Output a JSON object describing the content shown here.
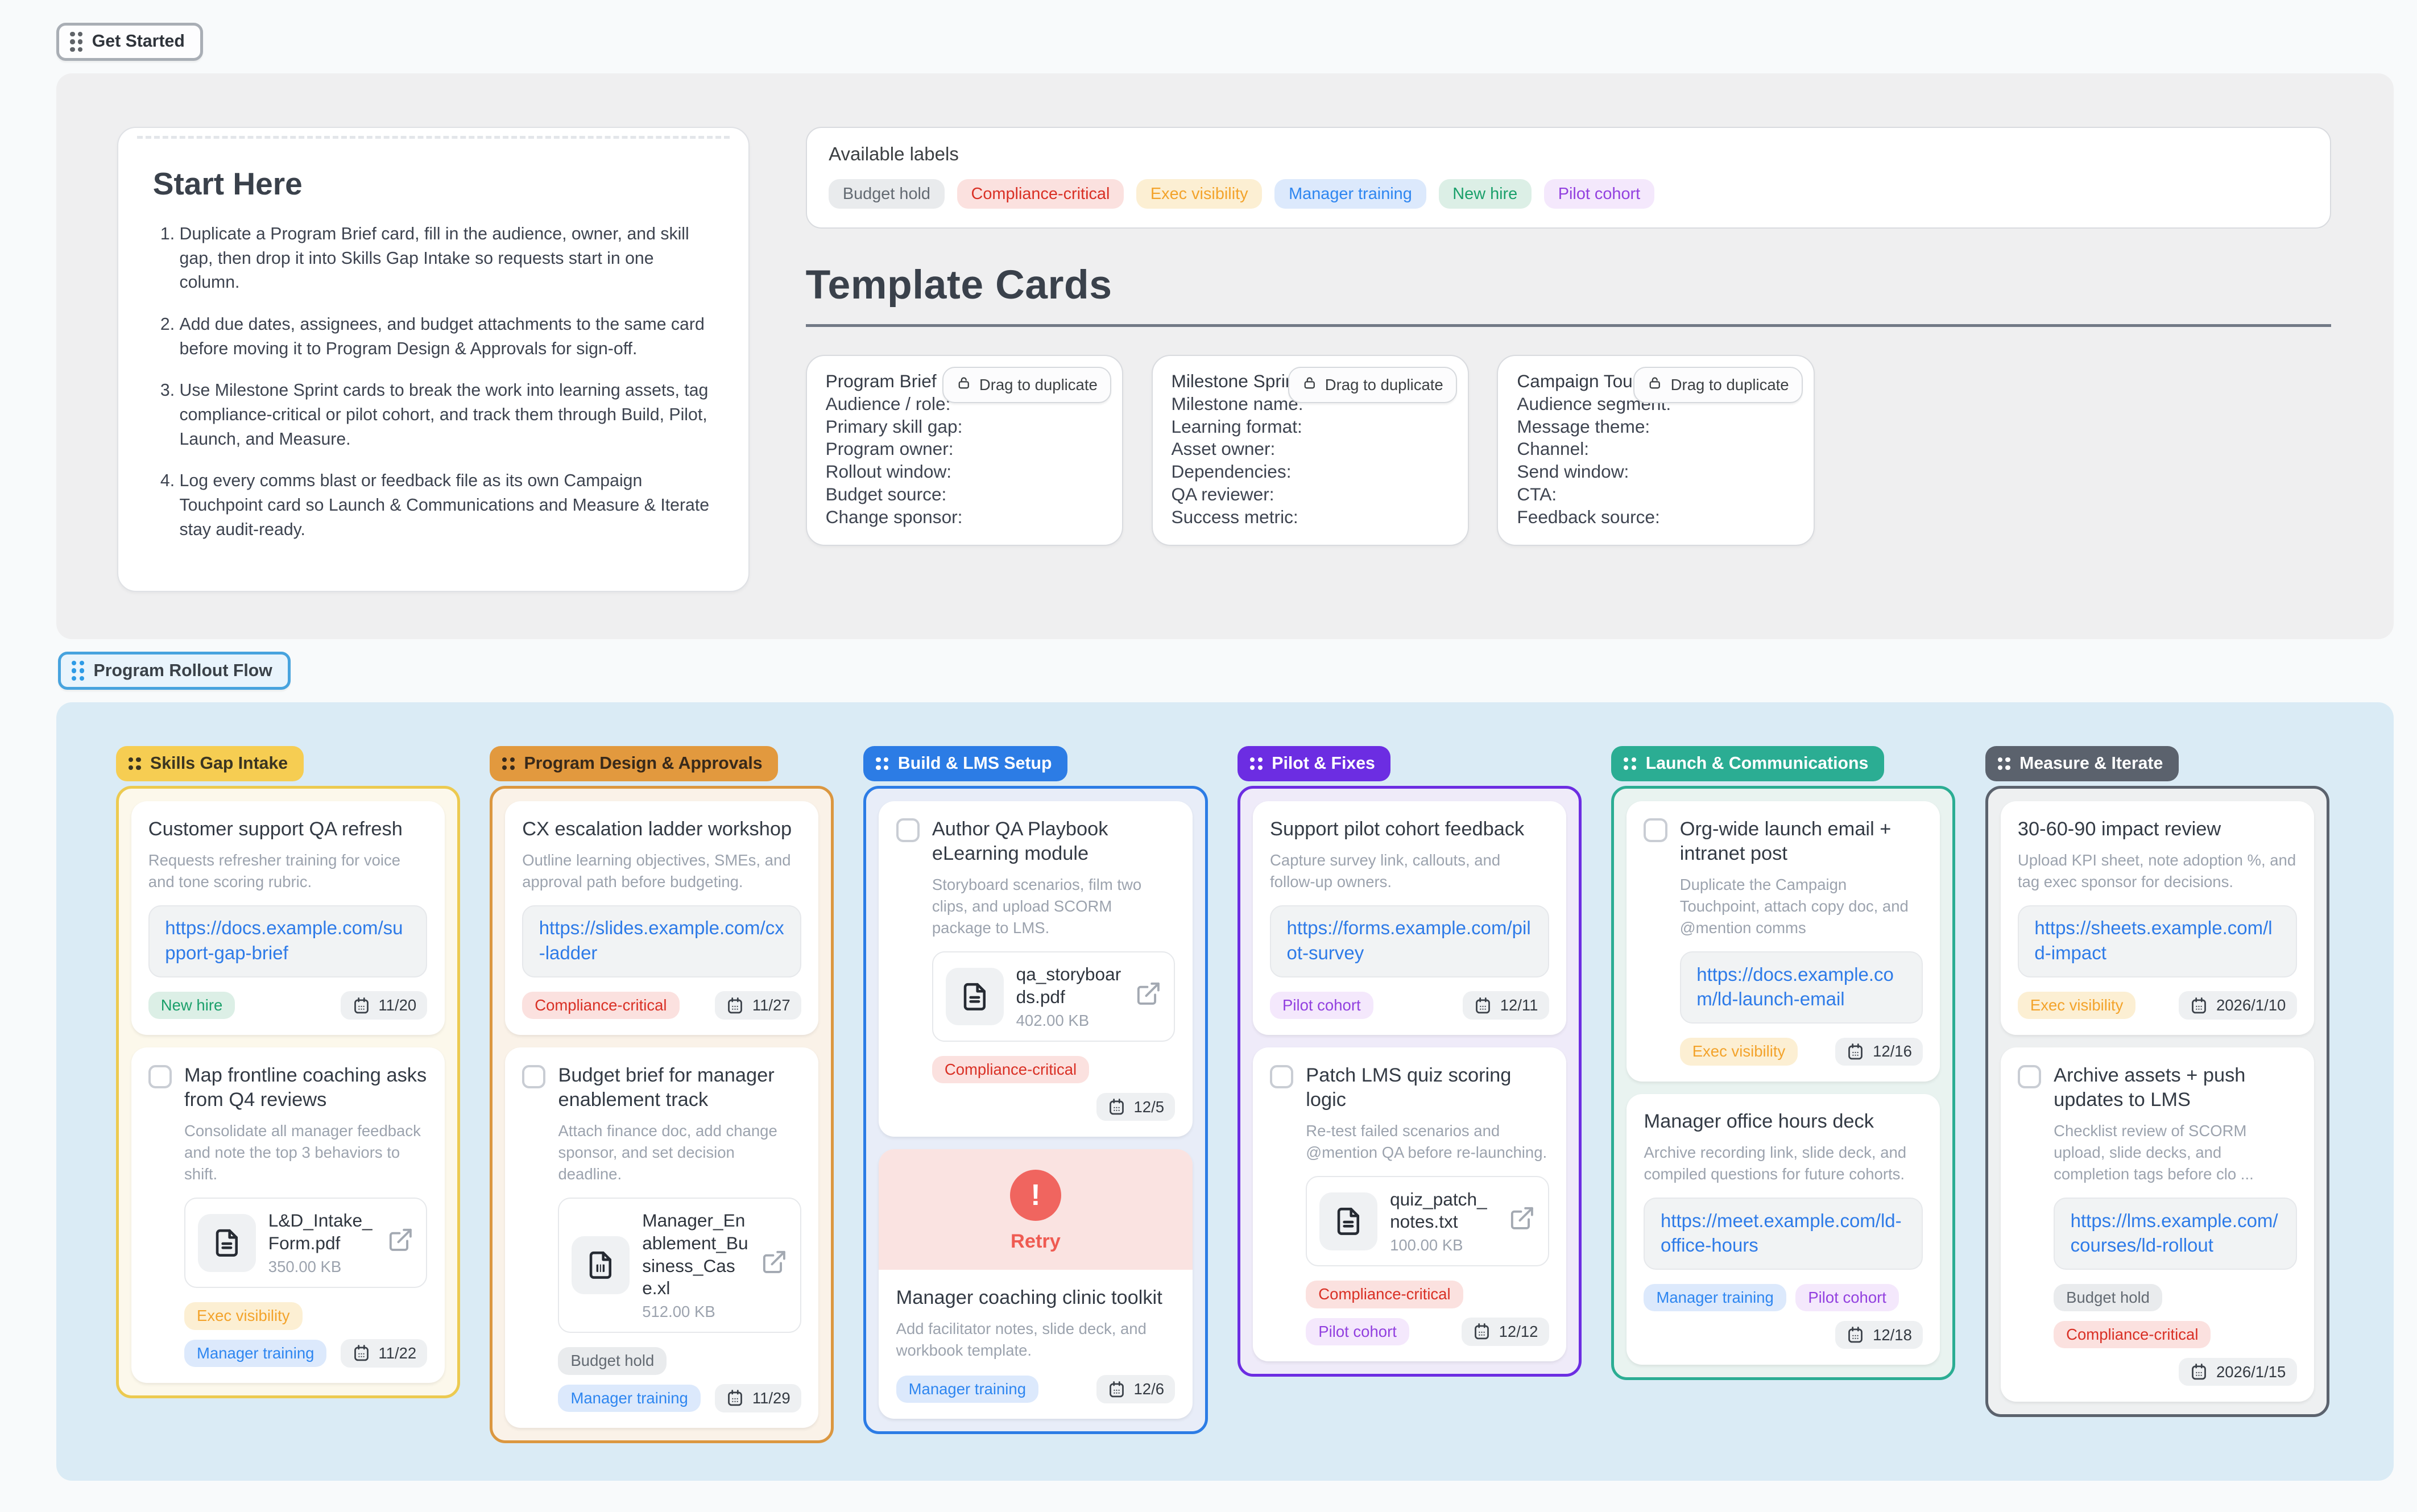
{
  "header": {
    "get_started_label": "Get Started"
  },
  "intro": {
    "start_here": {
      "title": "Start Here",
      "steps": [
        "Duplicate a Program Brief card, fill in the audience, owner, and skill gap, then drop it into Skills Gap Intake so requests start in one column.",
        "Add due dates, assignees, and budget attachments to the same card before moving it to Program Design & Approvals for sign-off.",
        "Use Milestone Sprint cards to break the work into learning assets, tag compliance-critical or pilot cohort, and track them through Build, Pilot, Launch, and Measure.",
        "Log every comms blast or feedback file as its own Campaign Touchpoint card so Launch & Communications and Measure & Iterate stay audit-ready."
      ]
    },
    "available_labels": {
      "title": "Available labels",
      "labels": [
        "Budget hold",
        "Compliance-critical",
        "Exec visibility",
        "Manager training",
        "New hire",
        "Pilot cohort"
      ]
    },
    "templates": {
      "heading": "Template Cards",
      "drag_button_label": "Drag to duplicate",
      "cards": [
        {
          "title": "Program Brief",
          "fields": [
            "Audience / role:",
            "Primary skill gap:",
            "Program owner:",
            "Rollout window:",
            "Budget source:",
            "Change sponsor:"
          ]
        },
        {
          "title": "Milestone Sprint",
          "fields": [
            "Milestone name:",
            "Learning format:",
            "Asset owner:",
            "Dependencies:",
            "QA reviewer:",
            "Success metric:"
          ]
        },
        {
          "title": "Campaign Touchpoint",
          "fields": [
            "Audience segment:",
            "Message theme:",
            "Channel:",
            "Send window:",
            "CTA:",
            "Feedback source:"
          ]
        }
      ]
    }
  },
  "board": {
    "toggle_label": "Program Rollout Flow",
    "retry_label": "Retry",
    "columns": [
      {
        "name": "Skills Gap Intake",
        "theme": "yellow",
        "cards": [
          {
            "title": "Customer support QA refresh",
            "description": "Requests refresher training for voice and tone scoring rubric.",
            "link": "https://docs.example.com/support-gap-brief",
            "labels": [
              "New hire"
            ],
            "date": "11/20"
          },
          {
            "checkbox": true,
            "title": "Map frontline coaching asks from Q4 reviews",
            "description": "Consolidate all manager feedback and note the top 3 behaviors to shift.",
            "attachment": {
              "name": "L&D_Intake_Form.pdf",
              "size": "350.00 KB",
              "kind": "doc"
            },
            "labels": [
              "Exec visibility",
              "Manager training"
            ],
            "date": "11/22"
          }
        ]
      },
      {
        "name": "Program Design & Approvals",
        "theme": "orange",
        "cards": [
          {
            "title": "CX escalation ladder workshop",
            "description": "Outline learning objectives, SMEs, and approval path before budgeting.",
            "link": "https://slides.example.com/cx-ladder",
            "labels": [
              "Compliance-critical"
            ],
            "date": "11/27"
          },
          {
            "checkbox": true,
            "title": "Budget brief for manager enablement track",
            "description": "Attach finance doc, add change sponsor, and set decision deadline.",
            "attachment": {
              "name": "Manager_Enablement_Business_Case.xl",
              "size": "512.00 KB",
              "kind": "sheet"
            },
            "labels": [
              "Budget hold",
              "Manager training"
            ],
            "date": "11/29"
          }
        ]
      },
      {
        "name": "Build & LMS Setup",
        "theme": "blue",
        "cards": [
          {
            "checkbox": true,
            "title": "Author QA Playbook eLearning module",
            "description": "Storyboard scenarios, film two clips, and upload SCORM package to LMS.",
            "attachment": {
              "name": "qa_storyboards.pdf",
              "size": "402.00 KB",
              "kind": "doc"
            },
            "labels": [
              "Compliance-critical"
            ],
            "date": "12/5"
          },
          {
            "retry": true,
            "title": "Manager coaching clinic toolkit",
            "description": "Add facilitator notes, slide deck, and workbook template.",
            "labels": [
              "Manager training"
            ],
            "date": "12/6"
          }
        ]
      },
      {
        "name": "Pilot & Fixes",
        "theme": "purple",
        "cards": [
          {
            "title": "Support pilot cohort feedback",
            "description": "Capture survey link, callouts, and follow-up owners.",
            "link": "https://forms.example.com/pilot-survey",
            "labels": [
              "Pilot cohort"
            ],
            "date": "12/11"
          },
          {
            "checkbox": true,
            "title": "Patch LMS quiz scoring logic",
            "description": "Re-test failed scenarios and @mention QA before re-launching.",
            "attachment": {
              "name": "quiz_patch_notes.txt",
              "size": "100.00 KB",
              "kind": "doc"
            },
            "labels": [
              "Compliance-critical",
              "Pilot cohort"
            ],
            "date": "12/12"
          }
        ]
      },
      {
        "name": "Launch & Communications",
        "theme": "teal",
        "cards": [
          {
            "checkbox": true,
            "title": "Org-wide launch email + intranet post",
            "description": "Duplicate the Campaign Touchpoint, attach copy doc, and @mention comms",
            "link": "https://docs.example.com/ld-launch-email",
            "labels": [
              "Exec visibility"
            ],
            "date": "12/16"
          },
          {
            "title": "Manager office hours deck",
            "description": "Archive recording link, slide deck, and compiled questions for future cohorts.",
            "link": "https://meet.example.com/ld-office-hours",
            "labels": [
              "Manager training",
              "Pilot cohort"
            ],
            "date": "12/18"
          }
        ]
      },
      {
        "name": "Measure & Iterate",
        "theme": "gray",
        "cards": [
          {
            "title": "30-60-90 impact review",
            "description": "Upload KPI sheet, note adoption %, and tag exec sponsor for decisions.",
            "link": "https://sheets.example.com/ld-impact",
            "labels": [
              "Exec visibility"
            ],
            "date": "2026/1/10"
          },
          {
            "checkbox": true,
            "title": "Archive assets + push updates to LMS",
            "description": "Checklist review of SCORM upload, slide decks, and completion tags before clo ...",
            "link": "https://lms.example.com/courses/ld-rollout",
            "labels": [
              "Budget hold",
              "Compliance-critical"
            ],
            "date": "2026/1/15"
          }
        ]
      }
    ]
  },
  "label_styles": {
    "Budget hold": {
      "fg": "#636A72",
      "bg": "#E9EBED"
    },
    "Compliance-critical": {
      "fg": "#D93025",
      "bg": "#FBE1DF"
    },
    "Exec visibility": {
      "fg": "#F3A32B",
      "bg": "#FCEFD3"
    },
    "Manager training": {
      "fg": "#2E86F0",
      "bg": "#DCE9FC"
    },
    "New hire": {
      "fg": "#1BA06B",
      "bg": "#DCEFE6"
    },
    "Pilot cohort": {
      "fg": "#9240DF",
      "bg": "#F4E8FC"
    }
  },
  "themes": {
    "yellow": {
      "header_bg": "#F6CD52",
      "header_fg": "#3B3521",
      "body_bg": "#FCF8EB",
      "border": "#ECCA50"
    },
    "orange": {
      "header_bg": "#E2993E",
      "header_fg": "#38291A",
      "body_bg": "#FAF2E8",
      "border": "#DB9740"
    },
    "blue": {
      "header_bg": "#2C7CE5",
      "header_fg": "#FFFFFF",
      "body_bg": "#E8EDF8",
      "border": "#2C7CE5"
    },
    "purple": {
      "header_bg": "#6C2DE2",
      "header_fg": "#FFFFFF",
      "body_bg": "#EFEBF9",
      "border": "#6C2DE2"
    },
    "teal": {
      "header_bg": "#2BAD93",
      "header_fg": "#FFFFFF",
      "body_bg": "#E9F3F0",
      "border": "#2BAD93"
    },
    "gray": {
      "header_bg": "#5B626D",
      "header_fg": "#FFFFFF",
      "body_bg": "#EEF0F1",
      "border": "#5B626D"
    }
  }
}
